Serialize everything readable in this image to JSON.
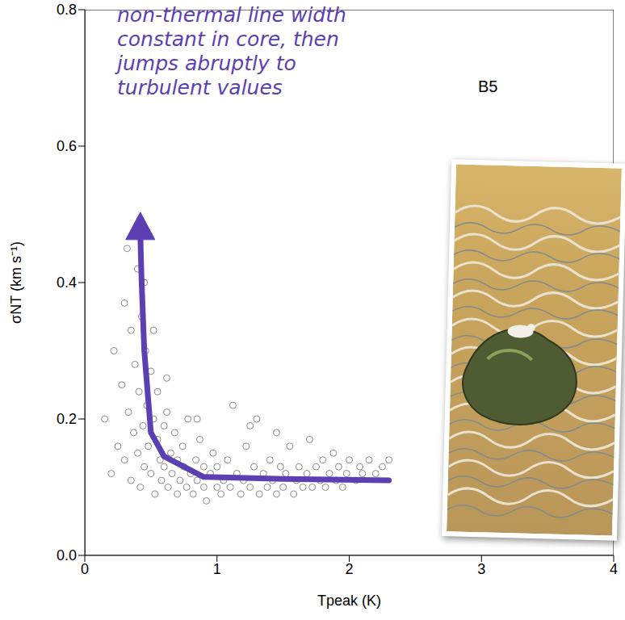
{
  "chart_data": {
    "type": "scatter",
    "title": "B5",
    "xlabel": "Tpeak (K)",
    "ylabel": "σNT (km s⁻¹)",
    "annotation": [
      "non-thermal line width",
      "constant in core, then",
      "jumps abruptly to",
      "turbulent values"
    ],
    "xlim": [
      0,
      4
    ],
    "xticks": [
      0,
      1,
      2,
      3,
      4
    ],
    "ylim": [
      0,
      0.8
    ],
    "yticks": [
      {
        "value": 0,
        "label": "0.0"
      },
      {
        "value": 0.2,
        "label": "0.2"
      },
      {
        "value": 0.4,
        "label": "0.4"
      },
      {
        "value": 0.6,
        "label": "0.6"
      },
      {
        "value": 0.8,
        "label": "0.8"
      }
    ],
    "grid": false,
    "series": [
      {
        "type": "scatter",
        "color": "#8c8c8c",
        "marker": "circle",
        "x": [
          0.15,
          0.2,
          0.22,
          0.25,
          0.28,
          0.3,
          0.3,
          0.32,
          0.33,
          0.35,
          0.35,
          0.37,
          0.38,
          0.4,
          0.4,
          0.41,
          0.42,
          0.43,
          0.44,
          0.45,
          0.46,
          0.47,
          0.48,
          0.5,
          0.5,
          0.52,
          0.53,
          0.55,
          0.55,
          0.57,
          0.58,
          0.6,
          0.6,
          0.62,
          0.63,
          0.65,
          0.66,
          0.68,
          0.7,
          0.7,
          0.72,
          0.74,
          0.75,
          0.77,
          0.78,
          0.8,
          0.82,
          0.84,
          0.85,
          0.87,
          0.9,
          0.9,
          0.92,
          0.95,
          0.97,
          1.0,
          1.0,
          1.03,
          1.05,
          1.08,
          1.1,
          1.12,
          1.15,
          1.18,
          1.2,
          1.22,
          1.25,
          1.28,
          1.3,
          1.32,
          1.35,
          1.38,
          1.4,
          1.42,
          1.45,
          1.48,
          1.5,
          1.52,
          1.55,
          1.58,
          1.6,
          1.62,
          1.65,
          1.68,
          1.7,
          1.72,
          1.75,
          1.78,
          1.8,
          1.82,
          1.85,
          1.88,
          1.9,
          1.92,
          1.95,
          1.98,
          2.0,
          2.05,
          2.08,
          2.1,
          2.15,
          2.2,
          2.25,
          2.3,
          0.45,
          0.52,
          1.25,
          0.62,
          0.85,
          1.45
        ],
        "values": [
          0.2,
          0.12,
          0.3,
          0.16,
          0.25,
          0.37,
          0.14,
          0.45,
          0.21,
          0.33,
          0.11,
          0.18,
          0.28,
          0.42,
          0.15,
          0.24,
          0.1,
          0.35,
          0.19,
          0.13,
          0.3,
          0.22,
          0.16,
          0.27,
          0.12,
          0.2,
          0.09,
          0.17,
          0.24,
          0.14,
          0.11,
          0.19,
          0.13,
          0.21,
          0.1,
          0.15,
          0.12,
          0.18,
          0.09,
          0.14,
          0.11,
          0.16,
          0.13,
          0.1,
          0.2,
          0.12,
          0.09,
          0.14,
          0.11,
          0.17,
          0.1,
          0.13,
          0.08,
          0.12,
          0.15,
          0.1,
          0.13,
          0.09,
          0.11,
          0.14,
          0.1,
          0.22,
          0.12,
          0.09,
          0.11,
          0.16,
          0.1,
          0.13,
          0.2,
          0.09,
          0.12,
          0.1,
          0.14,
          0.11,
          0.09,
          0.13,
          0.1,
          0.12,
          0.16,
          0.09,
          0.11,
          0.13,
          0.1,
          0.12,
          0.17,
          0.1,
          0.13,
          0.11,
          0.14,
          0.1,
          0.12,
          0.15,
          0.11,
          0.13,
          0.1,
          0.12,
          0.14,
          0.11,
          0.13,
          0.12,
          0.14,
          0.12,
          0.13,
          0.14,
          0.4,
          0.33,
          0.19,
          0.26,
          0.2,
          0.18
        ]
      },
      {
        "type": "line",
        "color": "#5b3fb3",
        "marker": "arrow",
        "line_style": "solid",
        "x": [
          2.3,
          1.5,
          0.9,
          0.6,
          0.5,
          0.45,
          0.43,
          0.42
        ],
        "values": [
          0.11,
          0.112,
          0.115,
          0.145,
          0.18,
          0.3,
          0.4,
          0.47
        ]
      }
    ]
  }
}
